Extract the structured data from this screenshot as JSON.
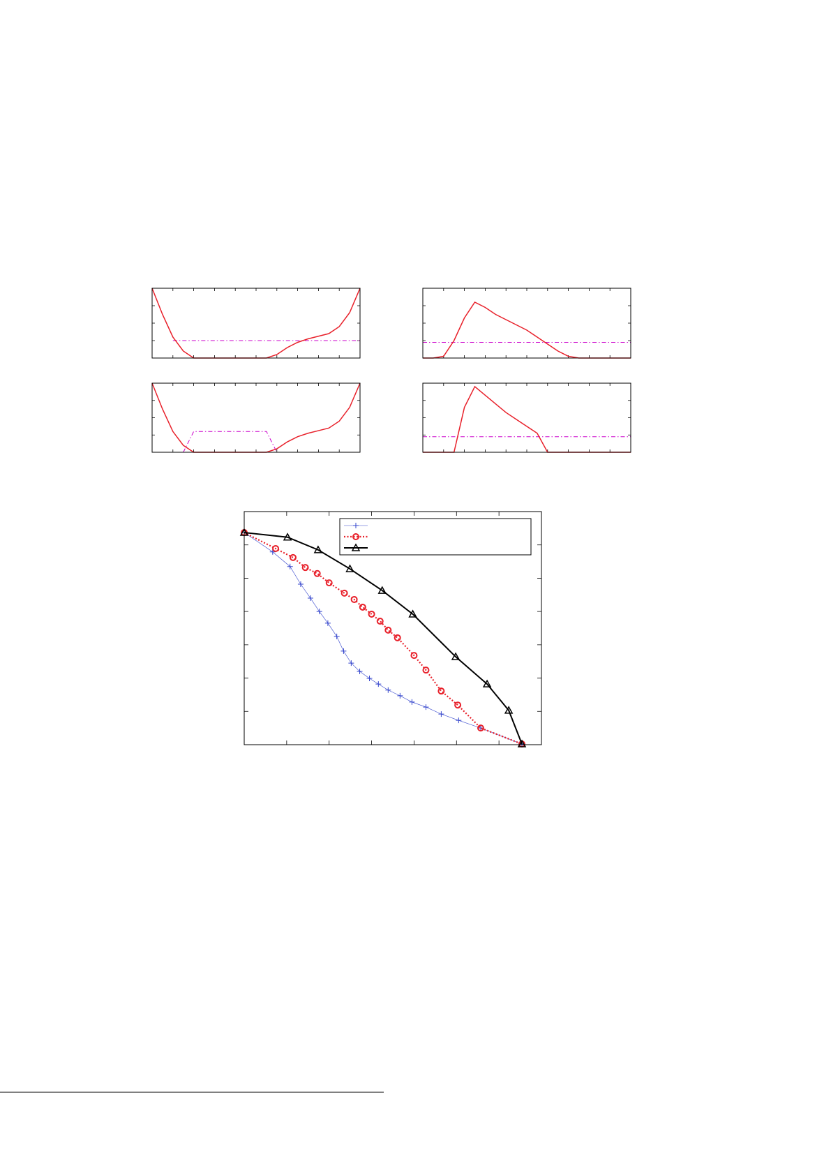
{
  "chart_data": [
    {
      "type": "line",
      "xlim": [
        0,
        10
      ],
      "ylim": [
        0,
        4
      ],
      "xticks": [
        0,
        1,
        2,
        3,
        4,
        5,
        6,
        7,
        8,
        9,
        10
      ],
      "yticks": [
        0,
        1,
        2,
        3,
        4
      ],
      "x": [
        0,
        0.5,
        1,
        1.5,
        2,
        2.5,
        3,
        3.5,
        4,
        4.5,
        5,
        5.5,
        6,
        6.5,
        7,
        7.5,
        8,
        8.5,
        9,
        9.5,
        10
      ],
      "series": [
        {
          "color": "#0000ff",
          "width": 1,
          "dash": "solid",
          "values": [
            0,
            0,
            0,
            0,
            0,
            0,
            0,
            0,
            0,
            0,
            0,
            0,
            0,
            0,
            0,
            0,
            0,
            0,
            0,
            0,
            0
          ]
        },
        {
          "color": "#cc00cc",
          "width": 1,
          "dash": "dashdot",
          "values": [
            null,
            null,
            1,
            1,
            1,
            1,
            1,
            1,
            1,
            1,
            1,
            1,
            1,
            1,
            1,
            1,
            1,
            1,
            1,
            1,
            1
          ]
        },
        {
          "color": "#e8202a",
          "width": 1.5,
          "dash": "solid",
          "values": [
            4,
            2.5,
            1.2,
            0.4,
            0,
            0,
            0,
            0,
            0,
            0,
            0,
            0,
            0.2,
            0.6,
            0.9,
            1.1,
            1.25,
            1.4,
            1.8,
            2.6,
            4
          ]
        }
      ]
    },
    {
      "type": "line",
      "xlim": [
        0,
        10
      ],
      "ylim": [
        0,
        4
      ],
      "xticks": [
        0,
        1,
        2,
        3,
        4,
        5,
        6,
        7,
        8,
        9,
        10
      ],
      "yticks": [
        0,
        1,
        2,
        3,
        4
      ],
      "x": [
        0,
        0.5,
        1,
        1.5,
        2,
        2.5,
        3,
        3.5,
        4,
        4.5,
        5,
        5.5,
        6,
        6.5,
        7,
        7.5,
        8,
        8.5,
        9,
        9.5,
        10
      ],
      "series": [
        {
          "color": "#0000ff",
          "width": 1,
          "dash": "solid",
          "values": [
            0,
            0,
            0,
            0,
            0,
            0,
            0,
            0,
            0,
            0,
            0,
            0,
            0,
            0,
            0,
            0,
            0,
            0,
            0,
            0,
            0
          ]
        },
        {
          "color": "#cc00cc",
          "width": 1,
          "dash": "dashdot",
          "values": [
            0.9,
            0.9,
            0.9,
            0.9,
            0.9,
            0.9,
            0.9,
            0.9,
            0.9,
            0.9,
            0.9,
            0.9,
            0.9,
            0.9,
            0.9,
            0.9,
            0.9,
            0.9,
            0.9,
            0.9,
            0.9
          ]
        },
        {
          "color": "#e8202a",
          "width": 1.5,
          "dash": "solid",
          "values": [
            0,
            0,
            0.1,
            1,
            2.3,
            3.2,
            2.9,
            2.5,
            2.2,
            1.9,
            1.6,
            1.2,
            0.8,
            0.4,
            0.1,
            0,
            0,
            0,
            0,
            0,
            0
          ]
        }
      ]
    },
    {
      "type": "line",
      "xlim": [
        0,
        10
      ],
      "ylim": [
        0,
        4
      ],
      "xticks": [
        0,
        1,
        2,
        3,
        4,
        5,
        6,
        7,
        8,
        9,
        10
      ],
      "yticks": [
        0,
        1,
        2,
        3,
        4
      ],
      "x": [
        0,
        0.5,
        1,
        1.5,
        2,
        2.5,
        3,
        3.5,
        4,
        4.5,
        5,
        5.5,
        6,
        6.5,
        7,
        7.5,
        8,
        8.5,
        9,
        9.5,
        10
      ],
      "series": [
        {
          "color": "#0000ff",
          "width": 1,
          "dash": "solid",
          "values": [
            0,
            0,
            0,
            0,
            0,
            0,
            0,
            0,
            0,
            0,
            0,
            0,
            0,
            0,
            0,
            0,
            0,
            0,
            0,
            0,
            0
          ]
        },
        {
          "color": "#cc00cc",
          "width": 1,
          "dash": "dashdot",
          "values": [
            null,
            null,
            null,
            0,
            1.2,
            1.2,
            1.2,
            1.2,
            1.2,
            1.2,
            1.2,
            1.2,
            0,
            null,
            null,
            null,
            null,
            null,
            null,
            null,
            null
          ]
        },
        {
          "color": "#e8202a",
          "width": 1.5,
          "dash": "solid",
          "values": [
            4,
            2.5,
            1.2,
            0.4,
            0,
            0,
            0,
            0,
            0,
            0,
            0,
            0,
            0.2,
            0.6,
            0.9,
            1.1,
            1.25,
            1.4,
            1.8,
            2.6,
            4
          ]
        }
      ]
    },
    {
      "type": "line",
      "xlim": [
        0,
        10
      ],
      "ylim": [
        0,
        4
      ],
      "xticks": [
        0,
        1,
        2,
        3,
        4,
        5,
        6,
        7,
        8,
        9,
        10
      ],
      "yticks": [
        0,
        1,
        2,
        3,
        4
      ],
      "x": [
        0,
        0.5,
        1,
        1.5,
        2,
        2.5,
        3,
        3.5,
        4,
        4.5,
        5,
        5.5,
        6,
        6.5,
        7,
        7.5,
        8,
        8.5,
        9,
        9.5,
        10
      ],
      "series": [
        {
          "color": "#0000ff",
          "width": 1,
          "dash": "solid",
          "values": [
            0,
            0,
            0,
            0,
            0,
            0,
            0,
            0,
            0,
            0,
            0,
            0,
            0,
            0,
            0,
            0,
            0,
            0,
            0,
            0,
            0
          ]
        },
        {
          "color": "#cc00cc",
          "width": 1,
          "dash": "dashdot",
          "values": [
            0.9,
            0.9,
            0.9,
            0.9,
            0.9,
            0.9,
            0.9,
            0.9,
            0.9,
            0.9,
            0.9,
            0.9,
            0.9,
            0.9,
            0.9,
            0.9,
            0.9,
            0.9,
            0.9,
            0.9,
            0.9
          ]
        },
        {
          "color": "#e8202a",
          "width": 1.5,
          "dash": "solid",
          "values": [
            0,
            0,
            0,
            0,
            2.6,
            3.8,
            3.3,
            2.8,
            2.3,
            1.9,
            1.5,
            1.1,
            0,
            0,
            0,
            0,
            0,
            0,
            0,
            0,
            0
          ]
        }
      ]
    },
    {
      "type": "line",
      "xlim": [
        0,
        7
      ],
      "ylim": [
        0,
        7
      ],
      "xticks": [
        0,
        1,
        2,
        3,
        4,
        5,
        6,
        7
      ],
      "yticks": [
        0,
        1,
        2,
        3,
        4,
        5,
        6,
        7
      ],
      "legend": "upper right",
      "series": [
        {
          "color": "#3344cc",
          "width": 0.6,
          "dash": "solid",
          "marker": "plus",
          "x": [
            0,
            0.67,
            1.08,
            1.33,
            1.56,
            1.77,
            1.97,
            2.18,
            2.34,
            2.52,
            2.72,
            2.95,
            3.16,
            3.39,
            3.67,
            3.95,
            4.28,
            4.64,
            5.05,
            5.57,
            6.54
          ],
          "values": [
            6.37,
            5.79,
            5.35,
            4.82,
            4.4,
            4.0,
            3.65,
            3.25,
            2.81,
            2.45,
            2.2,
            1.99,
            1.82,
            1.64,
            1.47,
            1.28,
            1.13,
            0.92,
            0.73,
            0.5,
            0.02
          ]
        },
        {
          "color": "#e8202a",
          "width": 2.2,
          "dash": "dotted",
          "marker": "circle",
          "x": [
            0,
            0.74,
            1.15,
            1.44,
            1.72,
            2.0,
            2.36,
            2.59,
            2.79,
            3.0,
            3.2,
            3.39,
            3.61,
            4.0,
            4.28,
            4.64,
            5.03,
            5.57,
            6.54
          ],
          "values": [
            6.37,
            5.89,
            5.62,
            5.32,
            5.14,
            4.86,
            4.55,
            4.36,
            4.13,
            3.92,
            3.71,
            3.44,
            3.21,
            2.68,
            2.24,
            1.61,
            1.19,
            0.5,
            0.02
          ]
        },
        {
          "color": "#000000",
          "width": 2,
          "dash": "solid",
          "marker": "triangle",
          "x": [
            0,
            1.02,
            1.74,
            2.49,
            3.25,
            3.97,
            4.98,
            5.72,
            6.23,
            6.54
          ],
          "values": [
            6.37,
            6.23,
            5.85,
            5.28,
            4.63,
            3.92,
            2.64,
            1.82,
            1.03,
            0.02
          ]
        }
      ]
    }
  ]
}
